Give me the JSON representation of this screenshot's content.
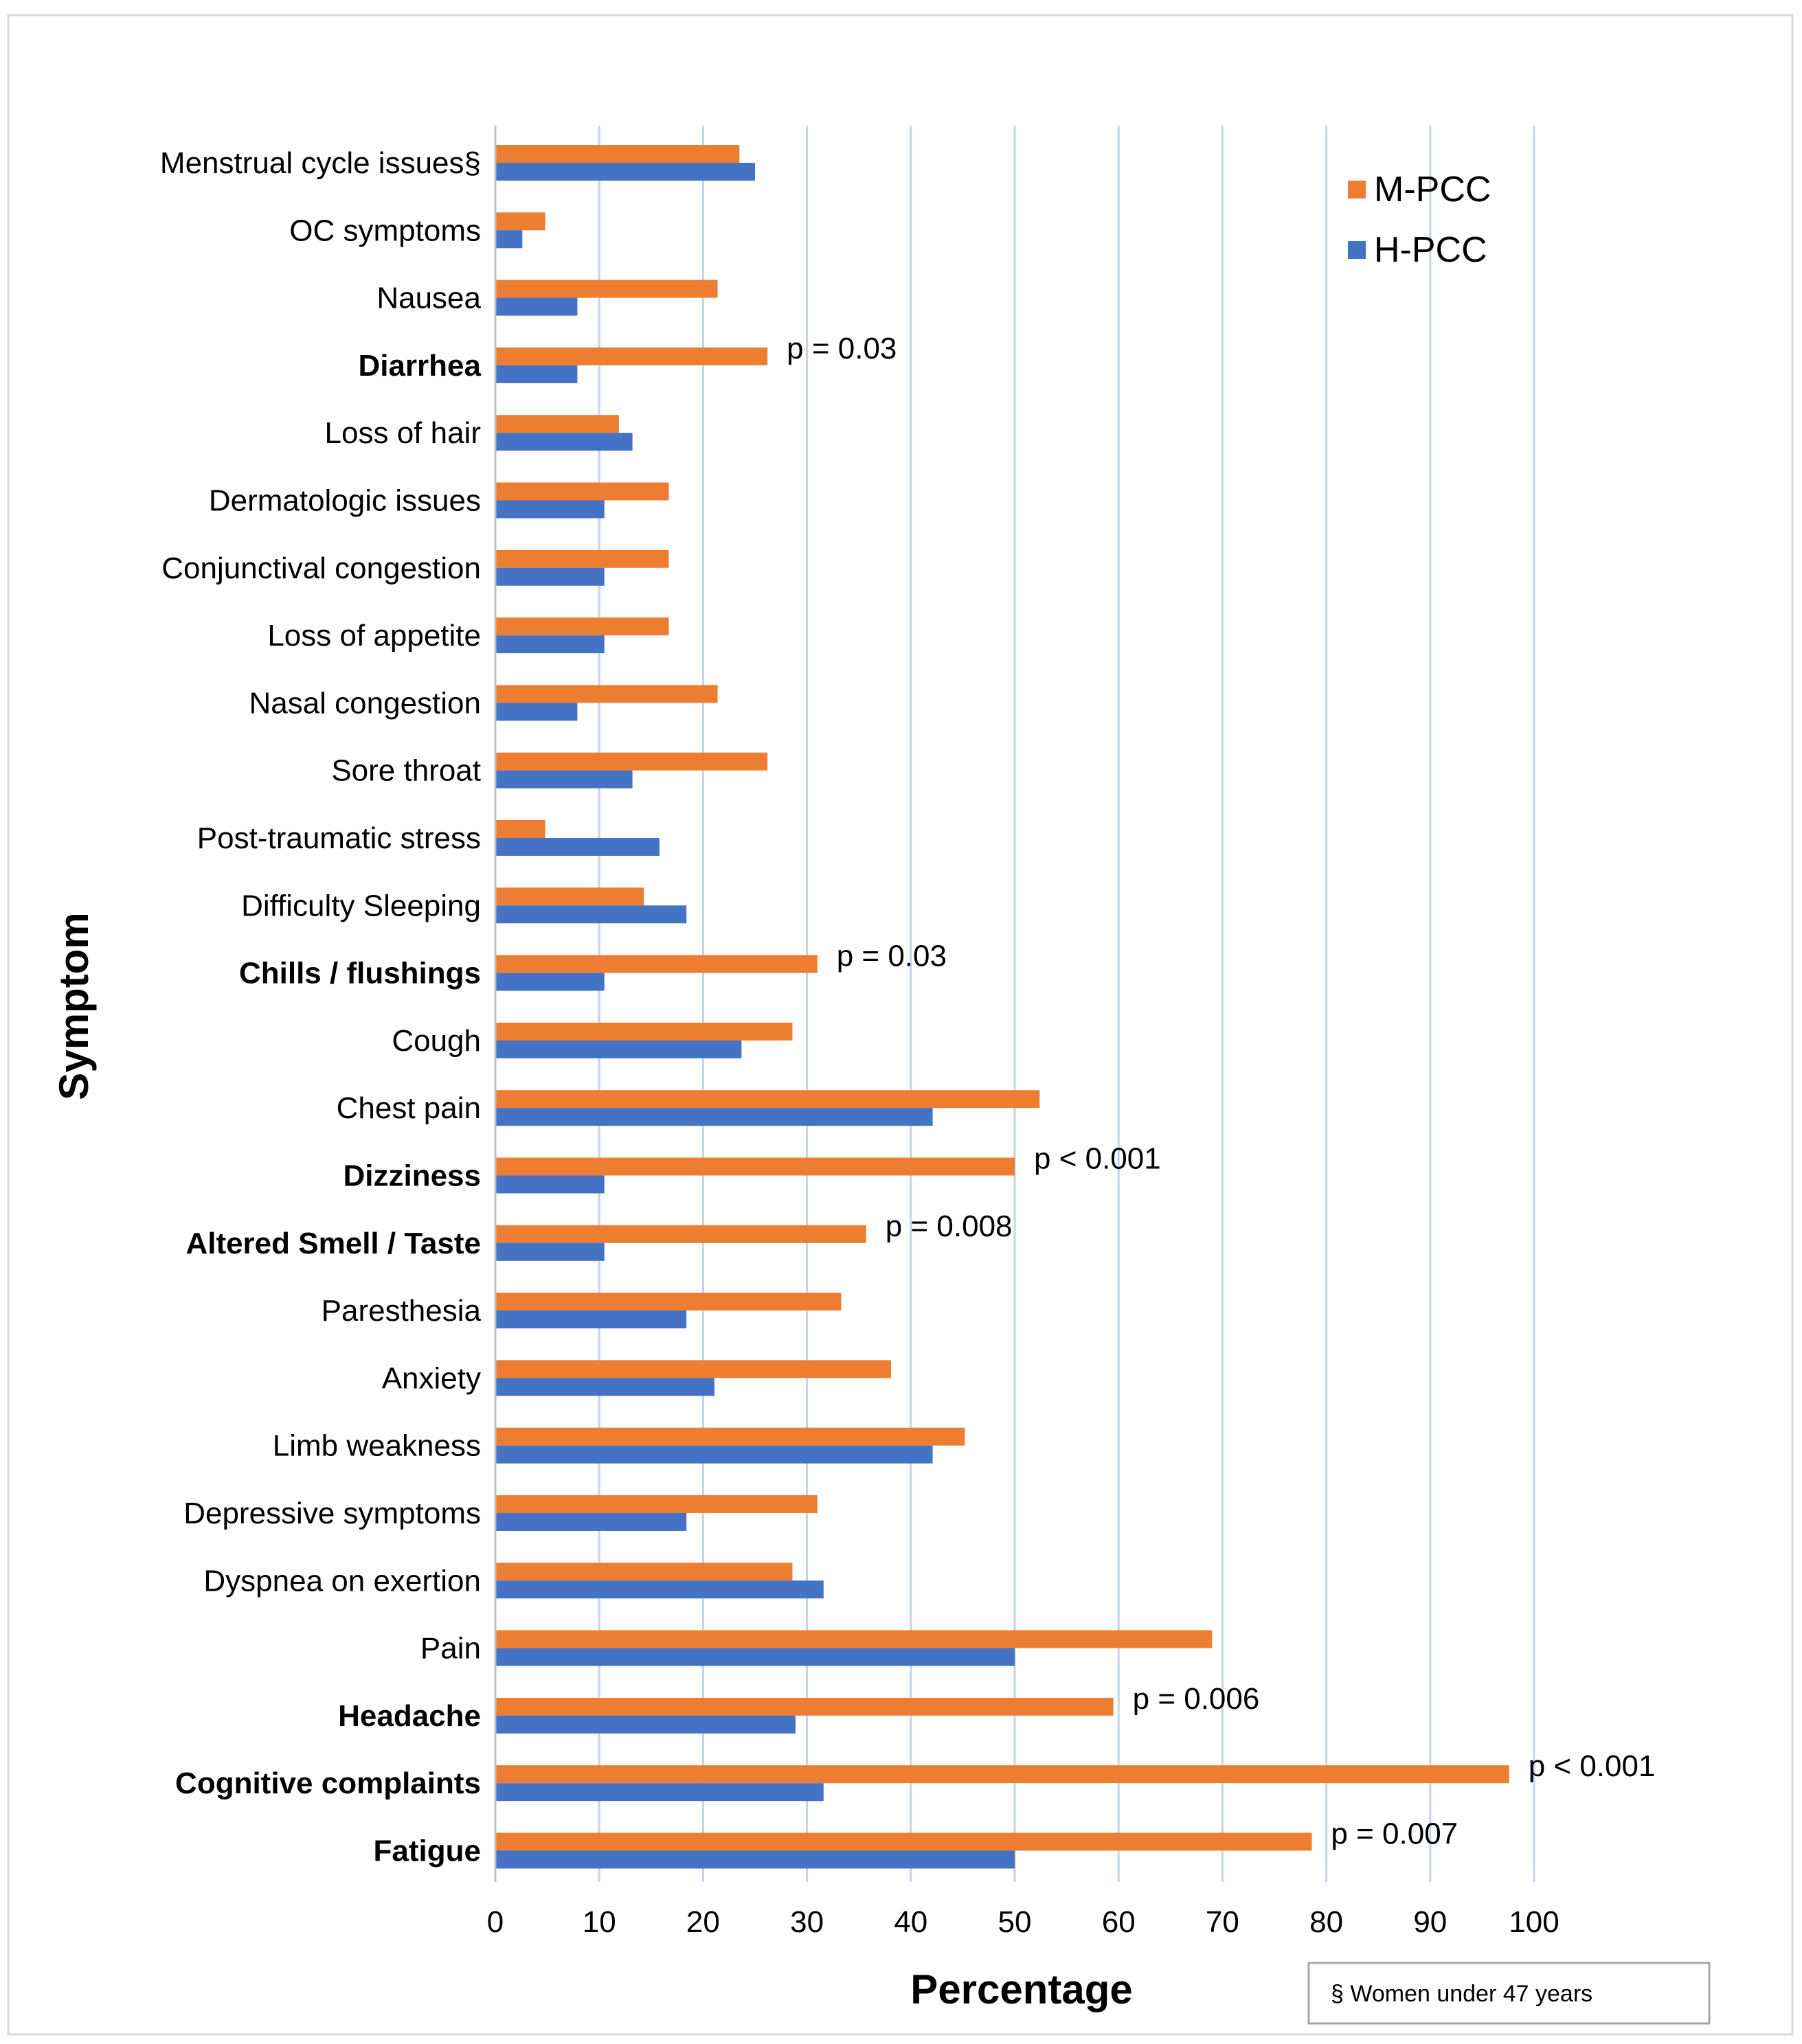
{
  "chart_data": {
    "type": "bar",
    "orientation": "horizontal",
    "xlabel": "Percentage",
    "ylabel": "Symptom",
    "xlim": [
      0,
      100
    ],
    "xticks": [
      0,
      10,
      20,
      30,
      40,
      50,
      60,
      70,
      80,
      90,
      100
    ],
    "grid": true,
    "legend_position": "top-right",
    "categories": [
      "Menstrual cycle issues§",
      "OC symptoms",
      "Nausea",
      "Diarrhea",
      "Loss of hair",
      "Dermatologic issues",
      "Conjunctival congestion",
      "Loss of appetite",
      "Nasal congestion",
      "Sore throat",
      "Post-traumatic stress",
      "Difficulty Sleeping",
      "Chills / flushings",
      "Cough",
      "Chest pain",
      "Dizziness",
      "Altered Smell / Taste",
      "Paresthesia",
      "Anxiety",
      "Limb weakness",
      "Depressive symptoms",
      "Dyspnea on exertion",
      "Pain",
      "Headache",
      "Cognitive complaints",
      "Fatigue"
    ],
    "bold_categories": [
      "Diarrhea",
      "Chills / flushings",
      "Dizziness",
      "Altered Smell / Taste",
      "Headache",
      "Cognitive complaints",
      "Fatigue"
    ],
    "series": [
      {
        "name": "M-PCC",
        "color": "#ed7d31",
        "values": [
          23.5,
          4.8,
          21.4,
          26.2,
          11.9,
          16.7,
          16.7,
          16.7,
          21.4,
          26.2,
          4.8,
          14.3,
          31.0,
          28.6,
          52.4,
          50.0,
          35.7,
          33.3,
          38.1,
          45.2,
          31.0,
          28.6,
          69.0,
          59.5,
          97.6,
          78.6
        ]
      },
      {
        "name": "H-PCC",
        "color": "#4472c4",
        "values": [
          25.0,
          2.6,
          7.9,
          7.9,
          13.2,
          10.5,
          10.5,
          10.5,
          7.9,
          13.2,
          15.8,
          18.4,
          10.5,
          23.7,
          42.1,
          10.5,
          10.5,
          18.4,
          21.1,
          42.1,
          18.4,
          31.6,
          50.0,
          28.9,
          31.6,
          50.0
        ]
      }
    ],
    "annotations": [
      {
        "category": "Diarrhea",
        "text": "p = 0.03"
      },
      {
        "category": "Chills / flushings",
        "text": "p = 0.03"
      },
      {
        "category": "Dizziness",
        "text": "p < 0.001"
      },
      {
        "category": "Altered Smell / Taste",
        "text": "p = 0.008"
      },
      {
        "category": "Headache",
        "text": "p = 0.006"
      },
      {
        "category": "Cognitive complaints",
        "text": "p < 0.001"
      },
      {
        "category": "Fatigue",
        "text": "p = 0.007"
      }
    ],
    "footnote": "§ Women under 47 years"
  }
}
